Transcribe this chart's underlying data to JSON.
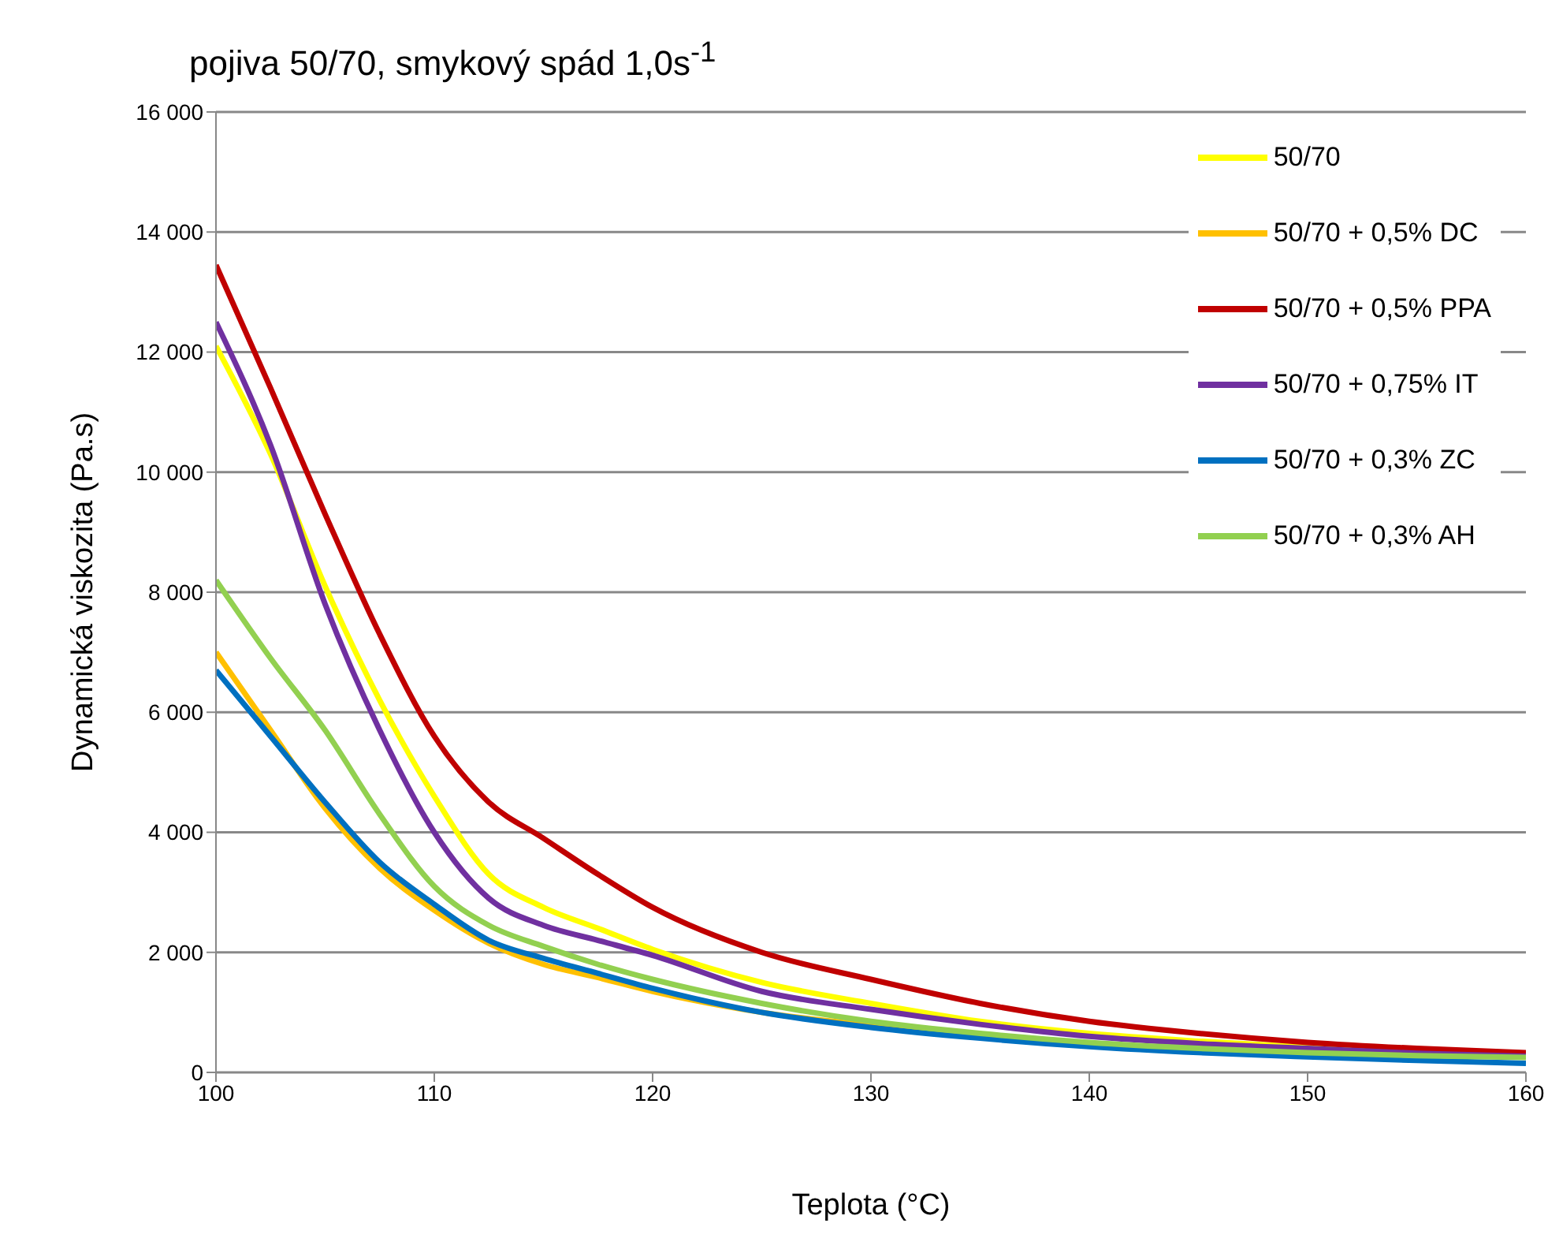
{
  "chart_data": {
    "type": "line",
    "title": "pojiva 50/70, smykový spád 1,0s$^{-1}$",
    "xlabel": "Teplota (°C)",
    "ylabel": "Dynamická viskozita (Pa.s)",
    "x": [
      100,
      102.5,
      105,
      107.5,
      110,
      112.5,
      115,
      117.5,
      120,
      125,
      130,
      135,
      140,
      145,
      150,
      155,
      160
    ],
    "series": [
      {
        "name": "50/70",
        "color": "#ffff00",
        "values": [
          12100,
          10300,
          8100,
          6200,
          4600,
          3300,
          2750,
          2400,
          2050,
          1500,
          1150,
          850,
          650,
          520,
          420,
          340,
          280
        ]
      },
      {
        "name": "50/70 + 0,5% DC",
        "color": "#ffc000",
        "values": [
          7000,
          5700,
          4400,
          3400,
          2700,
          2150,
          1800,
          1580,
          1350,
          1000,
          780,
          600,
          null,
          null,
          null,
          null,
          null
        ]
      },
      {
        "name": "50/70 + 0,5% PPA",
        "color": "#c00000",
        "values": [
          13450,
          11400,
          9300,
          7300,
          5600,
          4500,
          3900,
          3300,
          2750,
          2000,
          1550,
          1150,
          850,
          650,
          500,
          400,
          330
        ]
      },
      {
        "name": "50/70 + 0,75% IT",
        "color": "#7030a0",
        "values": [
          12500,
          10450,
          7800,
          5700,
          4000,
          2900,
          2450,
          2200,
          1950,
          1350,
          1050,
          800,
          600,
          480,
          400,
          320,
          270
        ]
      },
      {
        "name": "50/70 + 0,3% ZC",
        "color": "#0070c0",
        "values": [
          6700,
          5600,
          4500,
          3500,
          2800,
          2200,
          1900,
          1650,
          1400,
          1000,
          750,
          570,
          430,
          330,
          260,
          200,
          150
        ]
      },
      {
        "name": "50/70 + 0,3% AH",
        "color": "#92d050",
        "values": [
          8200,
          6900,
          5700,
          4300,
          3100,
          2450,
          2100,
          1800,
          1550,
          1150,
          850,
          650,
          500,
          400,
          330,
          280,
          250
        ]
      }
    ],
    "xlim": [
      100,
      160
    ],
    "xticks": [
      100,
      110,
      120,
      130,
      140,
      150,
      160
    ],
    "ylim": [
      0,
      16000
    ],
    "yticks": [
      {
        "value": 0,
        "label": "0"
      },
      {
        "value": 2000,
        "label": "2 000"
      },
      {
        "value": 4000,
        "label": "4 000"
      },
      {
        "value": 6000,
        "label": "6 000"
      },
      {
        "value": 8000,
        "label": "8 000"
      },
      {
        "value": 10000,
        "label": "10 000"
      },
      {
        "value": 12000,
        "label": "12 000"
      },
      {
        "value": 14000,
        "label": "14 000"
      },
      {
        "value": 16000,
        "label": "16 000"
      }
    ],
    "grid": "y",
    "legend": "top right",
    "marker": "none",
    "line_style": "solid"
  }
}
